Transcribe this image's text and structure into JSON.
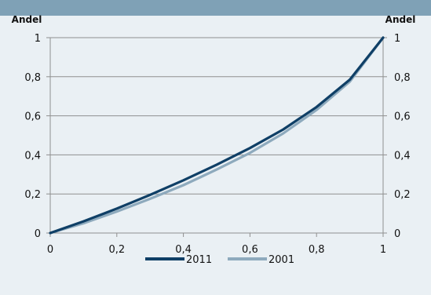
{
  "chart_data": {
    "type": "line",
    "title": "",
    "left_axis_title": "Andel",
    "right_axis_title": "Andel",
    "xlim": [
      0,
      1
    ],
    "ylim": [
      0,
      1
    ],
    "x_ticks": [
      "0",
      "0,2",
      "0,4",
      "0,6",
      "0,8",
      "1"
    ],
    "y_ticks": [
      "0",
      "0,2",
      "0,4",
      "0,6",
      "0,8",
      "1"
    ],
    "x_tick_values": [
      0,
      0.2,
      0.4,
      0.6,
      0.8,
      1
    ],
    "y_tick_values": [
      0,
      0.2,
      0.4,
      0.6,
      0.8,
      1
    ],
    "grid": "horizontal",
    "legend_position": "bottom",
    "series": [
      {
        "name": "2011",
        "color": "#0f3f66",
        "x": [
          0,
          0.1,
          0.2,
          0.3,
          0.4,
          0.5,
          0.6,
          0.7,
          0.8,
          0.9,
          1
        ],
        "y": [
          0,
          0.06,
          0.125,
          0.195,
          0.27,
          0.35,
          0.435,
          0.53,
          0.645,
          0.785,
          1
        ]
      },
      {
        "name": "2001",
        "color": "#8eaabd",
        "x": [
          0,
          0.1,
          0.2,
          0.3,
          0.4,
          0.5,
          0.6,
          0.7,
          0.8,
          0.9,
          1
        ],
        "y": [
          0,
          0.05,
          0.11,
          0.175,
          0.245,
          0.325,
          0.41,
          0.51,
          0.63,
          0.775,
          1
        ]
      }
    ]
  }
}
